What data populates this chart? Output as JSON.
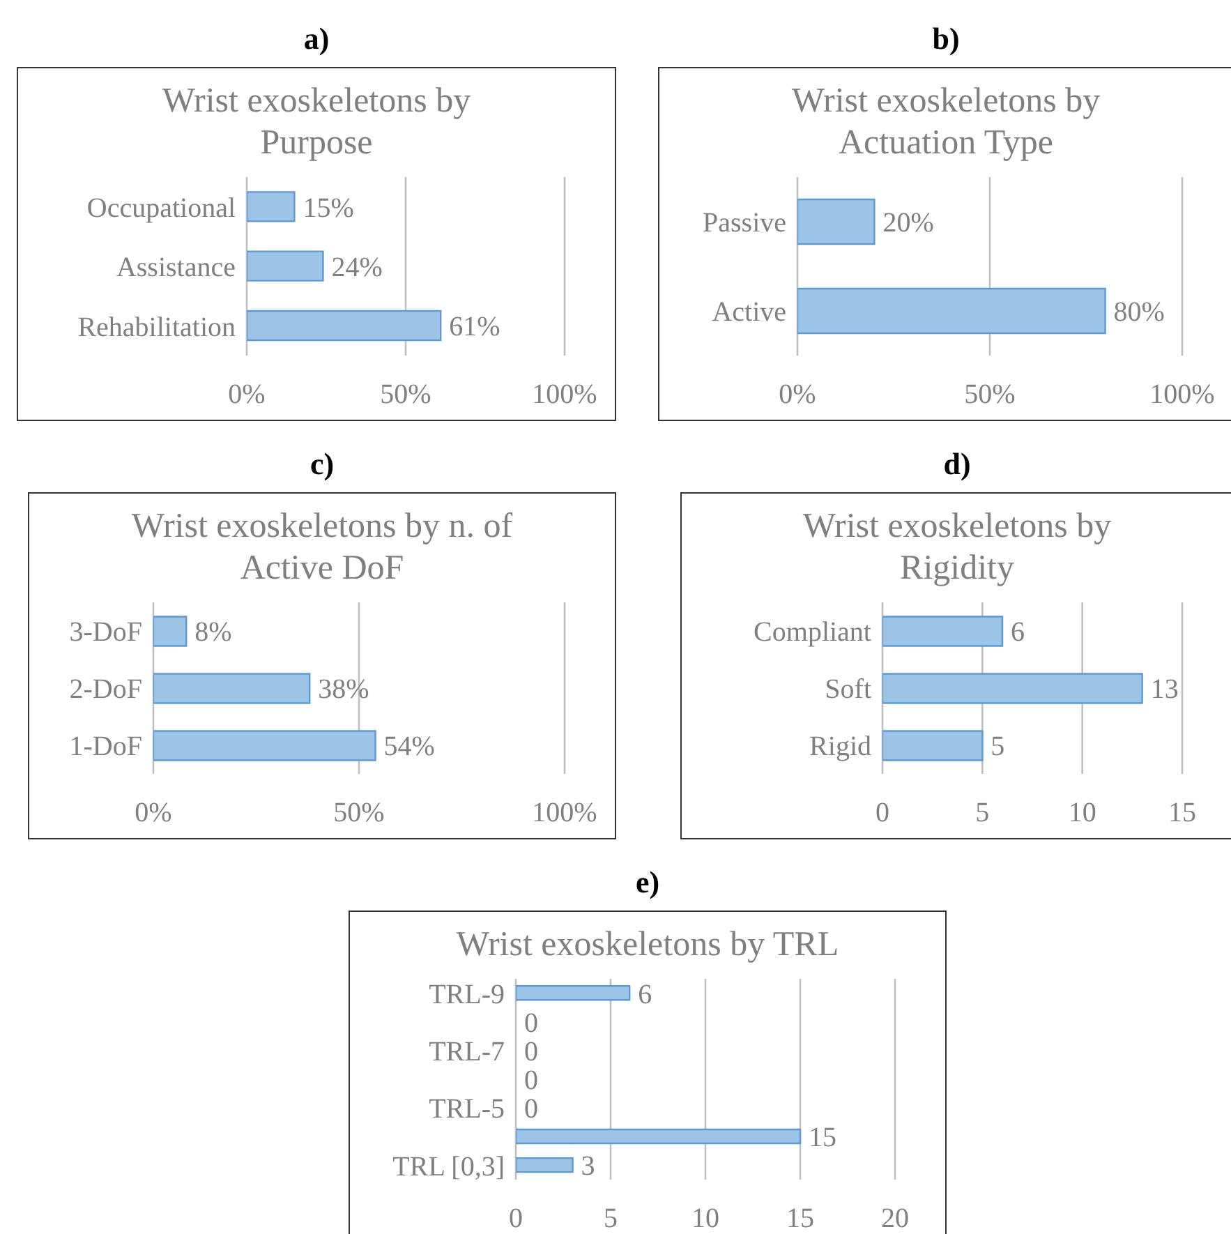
{
  "chart_data": [
    {
      "type": "bar",
      "orientation": "horizontal",
      "annotations": [
        "a)"
      ],
      "title": "Wrist exoskeletons by Purpose",
      "categories": [
        "Occupational",
        "Assistance",
        "Rehabilitation"
      ],
      "values": [
        15,
        24,
        61
      ],
      "value_labels": [
        "15%",
        "24%",
        "61%"
      ],
      "color": "#9dc3e6",
      "xlim": [
        0,
        100
      ],
      "xticks": [
        {
          "value": 0,
          "label": "0%"
        },
        {
          "value": 50,
          "label": "50%"
        },
        {
          "value": 100,
          "label": "100%"
        }
      ],
      "grid": "x"
    },
    {
      "type": "bar",
      "orientation": "horizontal",
      "annotations": [
        "b)"
      ],
      "title": "Wrist exoskeletons by Actuation Type",
      "categories": [
        "Passive",
        "Active"
      ],
      "values": [
        20,
        80
      ],
      "value_labels": [
        "20%",
        "80%"
      ],
      "color": "#9dc3e6",
      "xlim": [
        0,
        100
      ],
      "xticks": [
        {
          "value": 0,
          "label": "0%"
        },
        {
          "value": 50,
          "label": "50%"
        },
        {
          "value": 100,
          "label": "100%"
        }
      ],
      "grid": "x"
    },
    {
      "type": "bar",
      "orientation": "horizontal",
      "annotations": [
        "c)"
      ],
      "title": "Wrist exoskeletons by n. of Active DoF",
      "categories": [
        "3-DoF",
        "2-DoF",
        "1-DoF"
      ],
      "values": [
        8,
        38,
        54
      ],
      "value_labels": [
        "8%",
        "38%",
        "54%"
      ],
      "color": "#9dc3e6",
      "xlim": [
        0,
        100
      ],
      "xticks": [
        {
          "value": 0,
          "label": "0%"
        },
        {
          "value": 50,
          "label": "50%"
        },
        {
          "value": 100,
          "label": "100%"
        }
      ],
      "grid": "x"
    },
    {
      "type": "bar",
      "orientation": "horizontal",
      "annotations": [
        "d)"
      ],
      "title": "Wrist exoskeletons by Rigidity",
      "categories": [
        "Compliant",
        "Soft",
        "Rigid"
      ],
      "values": [
        6,
        13,
        5
      ],
      "data_labels": true,
      "color": "#9dc3e6",
      "xlim": [
        0,
        15
      ],
      "xticks": [
        0,
        5,
        10,
        15
      ],
      "grid": "x"
    },
    {
      "type": "bar",
      "orientation": "horizontal",
      "annotations": [
        "e)"
      ],
      "title": "Wrist exoskeletons by TRL",
      "categories": [
        "TRL-9",
        null,
        "TRL-7",
        null,
        "TRL-5",
        null,
        "TRL [0,3]"
      ],
      "values": [
        6,
        0,
        0,
        0,
        0,
        15,
        3
      ],
      "data_labels": true,
      "color": "#9dc3e6",
      "xlim": [
        0,
        20
      ],
      "xticks": [
        0,
        5,
        10,
        15,
        20
      ],
      "grid": "x"
    }
  ]
}
